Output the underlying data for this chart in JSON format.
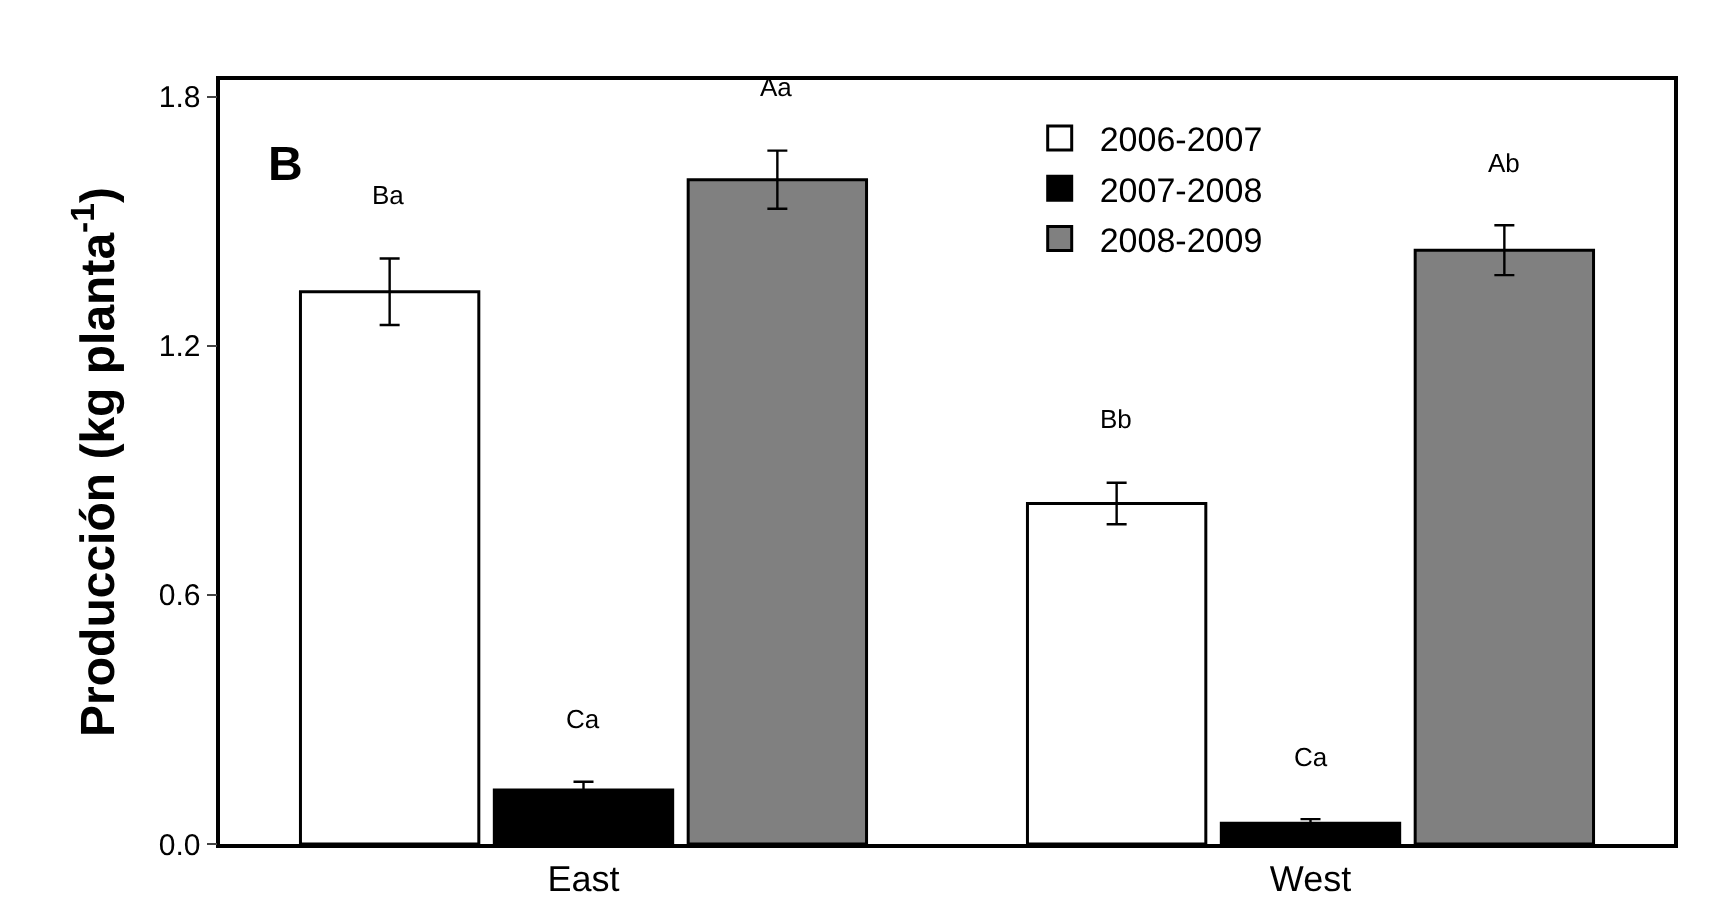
{
  "chart_data": {
    "type": "bar",
    "categories": [
      "East",
      "West"
    ],
    "ylabel": "Producción (kg planta$^{-1}$)",
    "series": [
      {
        "name": "2006-2007",
        "color": "#ffffff",
        "values": [
          1.33,
          0.82
        ],
        "errors": [
          0.08,
          0.05
        ],
        "value_labels": [
          "Ba",
          "Bb"
        ]
      },
      {
        "name": "2007-2008",
        "color": "#000000",
        "values": [
          0.13,
          0.05
        ],
        "errors": [
          0.02,
          0.01
        ],
        "value_labels": [
          "Ca",
          "Ca"
        ]
      },
      {
        "name": "2008-2009",
        "color": "#808080",
        "values": [
          1.6,
          1.43
        ],
        "errors": [
          0.07,
          0.06
        ],
        "value_labels": [
          "Aa",
          "Ab"
        ]
      }
    ],
    "annotations": [
      "B"
    ],
    "ylim": [
      0,
      1.84
    ],
    "yticks": [
      {
        "value": 0,
        "label": "0.0"
      },
      {
        "value": 0.6,
        "label": "0.6"
      },
      {
        "value": 1.2,
        "label": "1.2"
      },
      {
        "value": 1.8,
        "label": "1.8"
      }
    ],
    "legend": "top"
  }
}
